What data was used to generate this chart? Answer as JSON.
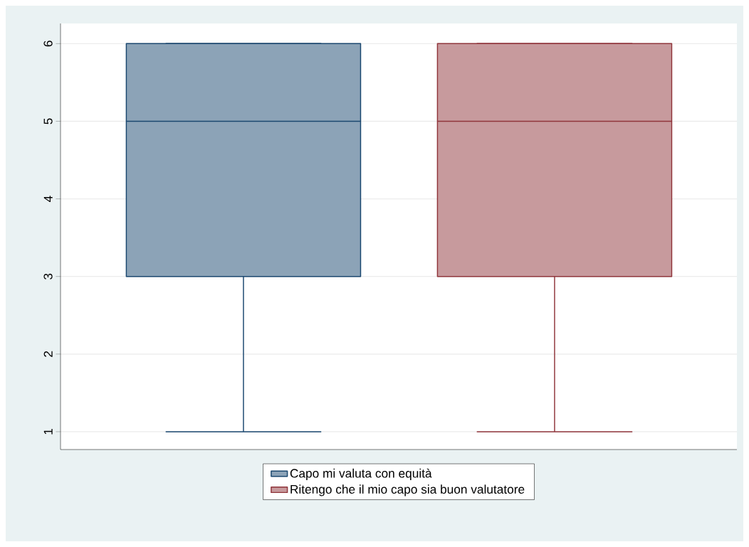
{
  "chart_data": {
    "type": "box",
    "categories": [
      null
    ],
    "series": [
      {
        "name": "Capo mi valuta con equità",
        "color": "#1a476f",
        "boxes": [
          {
            "low": 1,
            "q1": 3,
            "median": 5,
            "q3": 6,
            "high": 6
          }
        ]
      },
      {
        "name": "Ritengo che il mio capo sia buon valutatore",
        "color": "#90353b",
        "boxes": [
          {
            "low": 1,
            "q1": 3,
            "median": 5,
            "q3": 6,
            "high": 6
          }
        ]
      }
    ],
    "ylim": [
      0.77,
      6.26
    ],
    "yticks": [
      1,
      2,
      3,
      4,
      5,
      6
    ],
    "grid": "y",
    "legend": "bottom"
  }
}
